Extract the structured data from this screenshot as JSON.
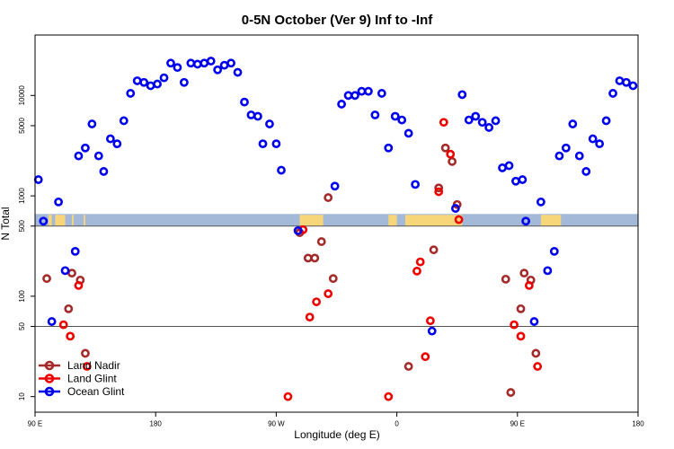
{
  "chart_data": {
    "type": "scatter",
    "title": "0-5N October (Ver 9)   Inf to -Inf",
    "xlabel": "Longitude (deg E)",
    "ylabel": "N Total",
    "xlim": [
      90,
      450
    ],
    "ylim": [
      7,
      40000
    ],
    "y_scale": "log",
    "x_ticks": [
      {
        "value": 90,
        "label": "90 E"
      },
      {
        "value": 162,
        "label": "180"
      },
      {
        "value": 234,
        "label": "90 W"
      },
      {
        "value": 306,
        "label": "0"
      },
      {
        "value": 378,
        "label": "90 E"
      },
      {
        "value": 450,
        "label": "180"
      }
    ],
    "y_ticks": [
      {
        "value": 10,
        "label": "10"
      },
      {
        "value": 50,
        "label": "50"
      },
      {
        "value": 100,
        "label": "100"
      },
      {
        "value": 500,
        "label": "500"
      },
      {
        "value": 1000,
        "label": "1000"
      },
      {
        "value": 5000,
        "label": "5000"
      },
      {
        "value": 10000,
        "label": "10000"
      }
    ],
    "reference_lines": [
      50,
      500
    ],
    "legend_position": "bottom-left",
    "grid": false,
    "map_strip": {
      "y_range": [
        500,
        660
      ],
      "ocean_color": "#a4b9d8",
      "land_color": "#f7d67a",
      "land_segments": [
        [
          98,
          100
        ],
        [
          102,
          108
        ],
        [
          112,
          113
        ],
        [
          119,
          120
        ],
        [
          248,
          262
        ],
        [
          301,
          306
        ],
        [
          311,
          345
        ],
        [
          392,
          404
        ]
      ]
    },
    "series": [
      {
        "name": "Land Nadir",
        "color": "#a52a2a",
        "points": [
          {
            "x": 97,
            "y": 150
          },
          {
            "x": 110,
            "y": 75
          },
          {
            "x": 112,
            "y": 170
          },
          {
            "x": 117,
            "y": 145
          },
          {
            "x": 120,
            "y": 27
          },
          {
            "x": 248,
            "y": 430
          },
          {
            "x": 253,
            "y": 240
          },
          {
            "x": 257,
            "y": 240
          },
          {
            "x": 261,
            "y": 350
          },
          {
            "x": 265,
            "y": 960
          },
          {
            "x": 268,
            "y": 150
          },
          {
            "x": 313,
            "y": 20
          },
          {
            "x": 328,
            "y": 290
          },
          {
            "x": 331,
            "y": 1200
          },
          {
            "x": 335,
            "y": 3000
          },
          {
            "x": 339,
            "y": 2200
          },
          {
            "x": 342,
            "y": 820
          },
          {
            "x": 371,
            "y": 148
          },
          {
            "x": 374,
            "y": 11
          },
          {
            "x": 380,
            "y": 75
          },
          {
            "x": 382,
            "y": 170
          },
          {
            "x": 386,
            "y": 145
          },
          {
            "x": 389,
            "y": 27
          }
        ]
      },
      {
        "name": "Land Glint",
        "color": "#ee0000",
        "points": [
          {
            "x": 107,
            "y": 52
          },
          {
            "x": 111,
            "y": 40
          },
          {
            "x": 116,
            "y": 128
          },
          {
            "x": 121,
            "y": 20
          },
          {
            "x": 241,
            "y": 10
          },
          {
            "x": 250,
            "y": 460
          },
          {
            "x": 254,
            "y": 62
          },
          {
            "x": 258,
            "y": 88
          },
          {
            "x": 265,
            "y": 106
          },
          {
            "x": 301,
            "y": 10
          },
          {
            "x": 318,
            "y": 178
          },
          {
            "x": 320,
            "y": 220
          },
          {
            "x": 323,
            "y": 25
          },
          {
            "x": 326,
            "y": 57
          },
          {
            "x": 331,
            "y": 1100
          },
          {
            "x": 334,
            "y": 5400
          },
          {
            "x": 338,
            "y": 2600
          },
          {
            "x": 343,
            "y": 580
          },
          {
            "x": 376,
            "y": 52
          },
          {
            "x": 380,
            "y": 40
          },
          {
            "x": 385,
            "y": 128
          },
          {
            "x": 390,
            "y": 20
          }
        ]
      },
      {
        "name": "Ocean Glint",
        "color": "#0000ee",
        "points": [
          {
            "x": 92,
            "y": 1450
          },
          {
            "x": 95,
            "y": 560
          },
          {
            "x": 100,
            "y": 56
          },
          {
            "x": 104,
            "y": 870
          },
          {
            "x": 108,
            "y": 180
          },
          {
            "x": 114,
            "y": 280
          },
          {
            "x": 116,
            "y": 2500
          },
          {
            "x": 120,
            "y": 3000
          },
          {
            "x": 124,
            "y": 5200
          },
          {
            "x": 128,
            "y": 2500
          },
          {
            "x": 131,
            "y": 1750
          },
          {
            "x": 135,
            "y": 3700
          },
          {
            "x": 139,
            "y": 3300
          },
          {
            "x": 143,
            "y": 5600
          },
          {
            "x": 147,
            "y": 10500
          },
          {
            "x": 151,
            "y": 14000
          },
          {
            "x": 155,
            "y": 13500
          },
          {
            "x": 159,
            "y": 12500
          },
          {
            "x": 163,
            "y": 13000
          },
          {
            "x": 167,
            "y": 15000
          },
          {
            "x": 171,
            "y": 21000
          },
          {
            "x": 175,
            "y": 19000
          },
          {
            "x": 179,
            "y": 13500
          },
          {
            "x": 183,
            "y": 21000
          },
          {
            "x": 187,
            "y": 20500
          },
          {
            "x": 191,
            "y": 21000
          },
          {
            "x": 195,
            "y": 22000
          },
          {
            "x": 199,
            "y": 18000
          },
          {
            "x": 203,
            "y": 20000
          },
          {
            "x": 207,
            "y": 21000
          },
          {
            "x": 211,
            "y": 17000
          },
          {
            "x": 215,
            "y": 8600
          },
          {
            "x": 219,
            "y": 6400
          },
          {
            "x": 223,
            "y": 6200
          },
          {
            "x": 226,
            "y": 3300
          },
          {
            "x": 230,
            "y": 5200
          },
          {
            "x": 234,
            "y": 3300
          },
          {
            "x": 237,
            "y": 1800
          },
          {
            "x": 247,
            "y": 450
          },
          {
            "x": 269,
            "y": 1250
          },
          {
            "x": 273,
            "y": 8200
          },
          {
            "x": 277,
            "y": 10000
          },
          {
            "x": 281,
            "y": 10000
          },
          {
            "x": 285,
            "y": 11000
          },
          {
            "x": 289,
            "y": 11000
          },
          {
            "x": 293,
            "y": 6400
          },
          {
            "x": 297,
            "y": 10500
          },
          {
            "x": 301,
            "y": 3000
          },
          {
            "x": 305,
            "y": 6200
          },
          {
            "x": 309,
            "y": 5700
          },
          {
            "x": 313,
            "y": 4200
          },
          {
            "x": 317,
            "y": 1300
          },
          {
            "x": 327,
            "y": 45
          },
          {
            "x": 341,
            "y": 750
          },
          {
            "x": 345,
            "y": 10200
          },
          {
            "x": 349,
            "y": 5700
          },
          {
            "x": 353,
            "y": 6200
          },
          {
            "x": 357,
            "y": 5400
          },
          {
            "x": 361,
            "y": 4800
          },
          {
            "x": 365,
            "y": 5600
          },
          {
            "x": 369,
            "y": 1900
          },
          {
            "x": 373,
            "y": 2000
          },
          {
            "x": 377,
            "y": 1400
          },
          {
            "x": 381,
            "y": 1450
          },
          {
            "x": 383,
            "y": 560
          },
          {
            "x": 388,
            "y": 56
          },
          {
            "x": 392,
            "y": 870
          },
          {
            "x": 396,
            "y": 180
          },
          {
            "x": 400,
            "y": 280
          },
          {
            "x": 403,
            "y": 2500
          },
          {
            "x": 407,
            "y": 3000
          },
          {
            "x": 411,
            "y": 5200
          },
          {
            "x": 415,
            "y": 2500
          },
          {
            "x": 419,
            "y": 1750
          },
          {
            "x": 423,
            "y": 3700
          },
          {
            "x": 427,
            "y": 3300
          },
          {
            "x": 431,
            "y": 5600
          },
          {
            "x": 435,
            "y": 10500
          },
          {
            "x": 439,
            "y": 14000
          },
          {
            "x": 443,
            "y": 13500
          },
          {
            "x": 447,
            "y": 12500
          }
        ]
      }
    ]
  }
}
